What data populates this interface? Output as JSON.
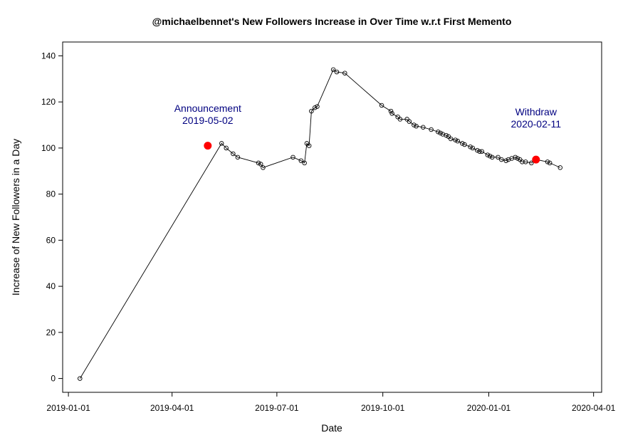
{
  "chart_data": {
    "type": "scatter",
    "title": "@michaelbennet's New Followers Increase in Over Time w.r.t First Memento",
    "xlabel": "Date",
    "ylabel": "Increase of New Followers in a Day",
    "xlim": [
      "2018-12-27",
      "2020-04-08"
    ],
    "ylim": [
      -6,
      146
    ],
    "x_ticks": [
      "2019-01-01",
      "2019-04-01",
      "2019-07-01",
      "2019-10-01",
      "2020-01-01",
      "2020-04-01"
    ],
    "y_ticks": [
      0,
      20,
      40,
      60,
      80,
      100,
      120,
      140
    ],
    "grid": false,
    "legend": "none",
    "line_color": "#000000",
    "point_color": "#000000",
    "highlight_color": "#ff0000",
    "annotation_color": "#000080",
    "series": [
      {
        "points": [
          [
            "2019-01-11",
            0
          ],
          [
            "2019-05-14",
            102
          ],
          [
            "2019-05-18",
            100
          ],
          [
            "2019-05-24",
            97.5
          ],
          [
            "2019-05-28",
            96
          ],
          [
            "2019-06-15",
            93.5
          ],
          [
            "2019-06-17",
            93
          ],
          [
            "2019-06-19",
            91.5
          ],
          [
            "2019-07-15",
            96
          ],
          [
            "2019-07-22",
            94.5
          ],
          [
            "2019-07-25",
            93.5
          ],
          [
            "2019-07-27",
            102
          ],
          [
            "2019-07-29",
            101
          ],
          [
            "2019-07-31",
            116
          ],
          [
            "2019-08-03",
            117.5
          ],
          [
            "2019-08-05",
            118
          ],
          [
            "2019-08-19",
            134
          ],
          [
            "2019-08-22",
            133
          ],
          [
            "2019-08-29",
            132.5
          ],
          [
            "2019-09-30",
            118.5
          ],
          [
            "2019-10-08",
            116
          ],
          [
            "2019-10-09",
            115
          ],
          [
            "2019-10-14",
            113.5
          ],
          [
            "2019-10-16",
            112.5
          ],
          [
            "2019-10-22",
            112.5
          ],
          [
            "2019-10-24",
            111.5
          ],
          [
            "2019-10-28",
            110
          ],
          [
            "2019-10-30",
            109.5
          ],
          [
            "2019-11-05",
            109
          ],
          [
            "2019-11-12",
            108
          ],
          [
            "2019-11-18",
            107
          ],
          [
            "2019-11-20",
            106.5
          ],
          [
            "2019-11-22",
            106
          ],
          [
            "2019-11-25",
            105.5
          ],
          [
            "2019-11-27",
            105
          ],
          [
            "2019-11-29",
            104
          ],
          [
            "2019-12-03",
            103.5
          ],
          [
            "2019-12-05",
            103
          ],
          [
            "2019-12-09",
            102
          ],
          [
            "2019-12-11",
            101.5
          ],
          [
            "2019-12-16",
            100.5
          ],
          [
            "2019-12-18",
            100
          ],
          [
            "2019-12-22",
            99
          ],
          [
            "2019-12-24",
            98.5
          ],
          [
            "2019-12-26",
            98.5
          ],
          [
            "2019-12-31",
            97
          ],
          [
            "2020-01-02",
            96.5
          ],
          [
            "2020-01-04",
            96
          ],
          [
            "2020-01-09",
            96
          ],
          [
            "2020-01-12",
            95
          ],
          [
            "2020-01-16",
            94.5
          ],
          [
            "2020-01-18",
            95
          ],
          [
            "2020-01-21",
            95.5
          ],
          [
            "2020-01-24",
            96
          ],
          [
            "2020-01-26",
            95.5
          ],
          [
            "2020-01-28",
            95
          ],
          [
            "2020-01-30",
            94
          ],
          [
            "2020-02-02",
            94
          ],
          [
            "2020-02-07",
            93.5
          ],
          [
            "2020-02-11",
            95
          ],
          [
            "2020-02-21",
            94
          ],
          [
            "2020-02-23",
            93.5
          ],
          [
            "2020-03-03",
            91.5
          ]
        ]
      }
    ],
    "highlights": [
      {
        "x": "2019-05-02",
        "y": 101
      },
      {
        "x": "2020-02-11",
        "y": 95
      }
    ],
    "annotations": [
      {
        "lines": [
          "Announcement",
          "2019-05-02"
        ],
        "x": "2019-05-02",
        "y": 114.5
      },
      {
        "lines": [
          "Withdraw",
          "2020-02-11"
        ],
        "x": "2020-02-11",
        "y": 113
      }
    ]
  }
}
